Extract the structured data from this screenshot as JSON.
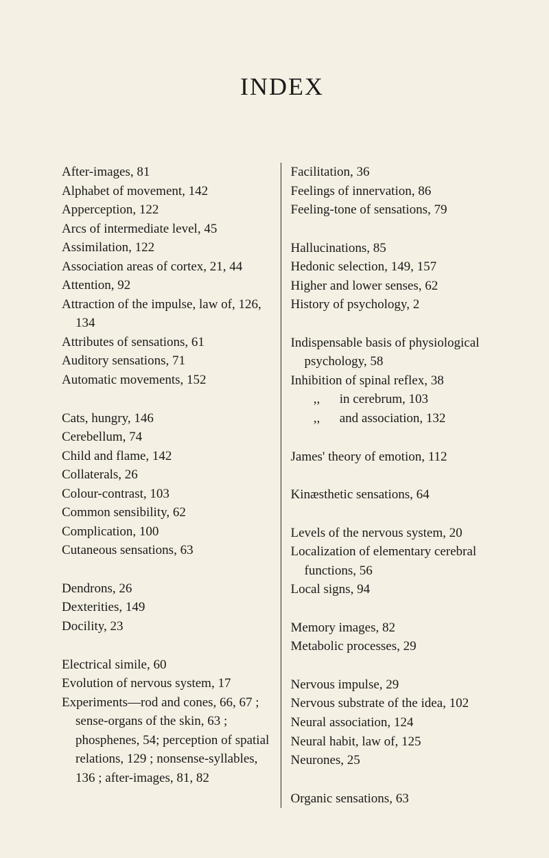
{
  "title": "INDEX",
  "left_column": [
    [
      "After-images, 81",
      "Alphabet of movement, 142",
      "Apperception, 122",
      "Arcs of intermediate level, 45",
      "Assimilation, 122",
      "Association areas of cortex, 21, 44",
      "Attention, 92",
      "Attraction of the impulse, law of, 126, 134",
      "Attributes of sensations, 61",
      "Auditory sensations, 71",
      "Automatic movements, 152"
    ],
    [
      "Cats, hungry, 146",
      "Cerebellum, 74",
      "Child and flame, 142",
      "Collaterals, 26",
      "Colour-contrast, 103",
      "Common sensibility, 62",
      "Complication, 100",
      "Cutaneous sensations, 63"
    ],
    [
      "Dendrons, 26",
      "Dexterities, 149",
      "Docility, 23"
    ],
    [
      "Electrical simile, 60",
      "Evolution of nervous system, 17",
      "Experiments—rod and cones, 66, 67 ; sense-organs of the skin, 63 ; phosphenes, 54; perception of spatial relations, 129 ; nonsense-syllables, 136 ; after-images, 81, 82"
    ]
  ],
  "right_column": [
    [
      "Facilitation, 36",
      "Feelings of innervation, 86",
      "Feeling-tone of sensations, 79"
    ],
    [
      "Hallucinations, 85",
      "Hedonic selection, 149, 157",
      "Higher and lower senses, 62",
      "History of psychology, 2"
    ],
    [
      "Indispensable basis of physiological psychology, 58",
      "Inhibition of spinal reflex, 38",
      "       ,,      in cerebrum, 103",
      "       ,,      and association, 132"
    ],
    [
      "James' theory of emotion, 112"
    ],
    [
      "Kinæsthetic sensations, 64"
    ],
    [
      "Levels of the nervous system, 20",
      "Localization of elementary cerebral functions, 56",
      "Local signs, 94"
    ],
    [
      "Memory images, 82",
      "Metabolic processes, 29"
    ],
    [
      "Nervous impulse, 29",
      "Nervous substrate of the idea, 102",
      "Neural association, 124",
      "Neural habit, law of, 125",
      "Neurones, 25"
    ],
    [
      "Organic sensations, 63"
    ]
  ]
}
